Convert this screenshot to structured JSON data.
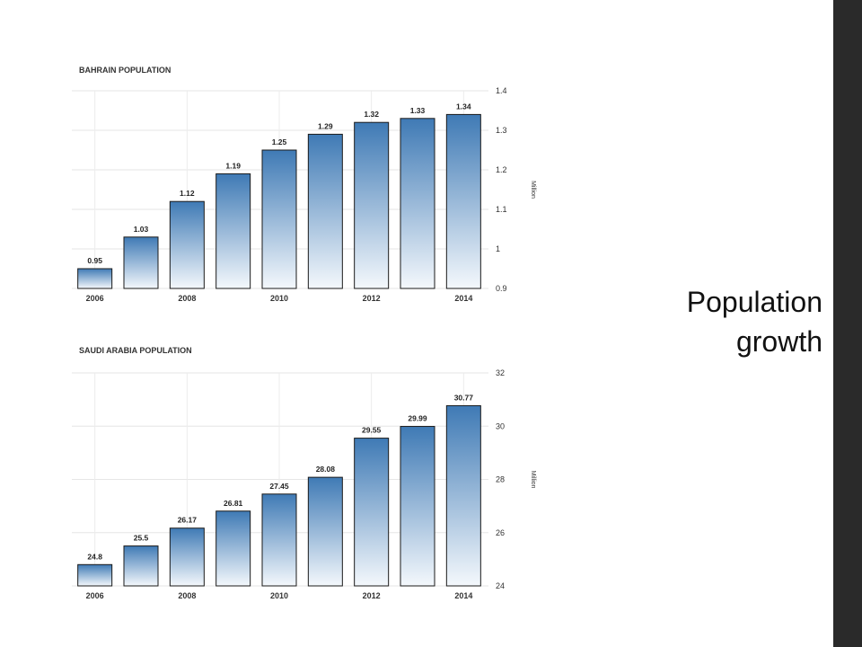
{
  "slide": {
    "title_lines": [
      "Population",
      "growth"
    ]
  },
  "colors": {
    "bar_top": "#3f7ab5",
    "bar_bottom": "#f4f8fc",
    "bar_stroke": "#1a1a1a",
    "border_strip": "#2a2a2a"
  },
  "chart_data": [
    {
      "type": "bar",
      "title": "BAHRAIN POPULATION",
      "x": [
        2006,
        2007,
        2008,
        2009,
        2010,
        2011,
        2012,
        2013,
        2014
      ],
      "x_tick_labels": [
        "2006",
        "2008",
        "2010",
        "2012",
        "2014"
      ],
      "values": [
        0.95,
        1.03,
        1.12,
        1.19,
        1.25,
        1.29,
        1.32,
        1.33,
        1.34
      ],
      "data_labels": [
        "0.95",
        "1.03",
        "1.12",
        "1.19",
        "1.25",
        "1.29",
        "1.32",
        "1.33",
        "1.34"
      ],
      "ylim": [
        0.9,
        1.4
      ],
      "y_ticks": [
        0.9,
        1,
        1.1,
        1.2,
        1.3,
        1.4
      ],
      "y_tick_labels": [
        "0.9",
        "1",
        "1.1",
        "1.2",
        "1.3",
        "1.4"
      ],
      "ylabel": "Million",
      "y_axis_side": "right",
      "grid": true
    },
    {
      "type": "bar",
      "title": "SAUDI ARABIA POPULATION",
      "x": [
        2006,
        2007,
        2008,
        2009,
        2010,
        2011,
        2012,
        2013,
        2014
      ],
      "x_tick_labels": [
        "2006",
        "2008",
        "2010",
        "2012",
        "2014"
      ],
      "values": [
        24.8,
        25.5,
        26.17,
        26.81,
        27.45,
        28.08,
        29.55,
        29.99,
        30.77
      ],
      "data_labels": [
        "24.8",
        "25.5",
        "26.17",
        "26.81",
        "27.45",
        "28.08",
        "29.55",
        "29.99",
        "30.77"
      ],
      "ylim": [
        24,
        32
      ],
      "y_ticks": [
        24,
        26,
        28,
        30,
        32
      ],
      "y_tick_labels": [
        "24",
        "26",
        "28",
        "30",
        "32"
      ],
      "ylabel": "Million",
      "y_axis_side": "right",
      "grid": true
    }
  ]
}
